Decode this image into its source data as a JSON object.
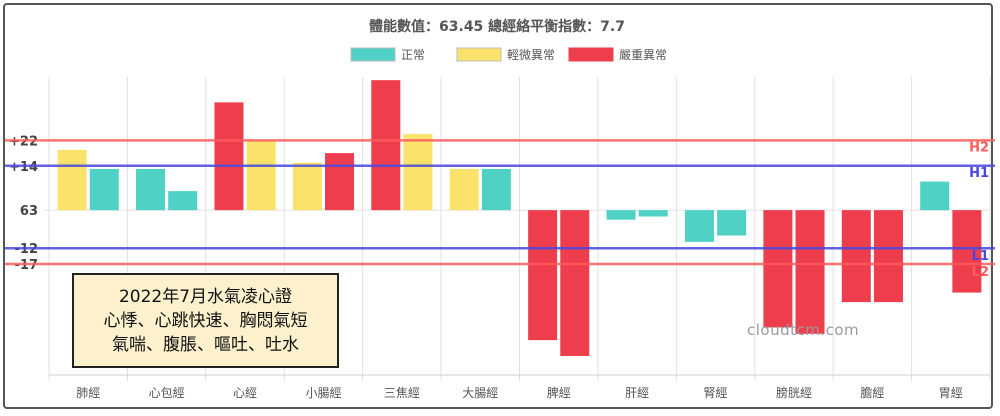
{
  "chart_data": {
    "type": "bar",
    "title": "體能數值：63.45 總經絡平衡指數：7.7",
    "legend": [
      {
        "label": "正常",
        "color": "#4fd1c5"
      },
      {
        "label": "輕微異常",
        "color": "#fbe36b"
      },
      {
        "label": "嚴重異常",
        "color": "#ee3e4e"
      }
    ],
    "legend_position": "top-center",
    "categories": [
      "肺經",
      "心包經",
      "心經",
      "小腸經",
      "三焦經",
      "大腸經",
      "脾經",
      "肝經",
      "腎經",
      "膀胱經",
      "膽經",
      "胃經"
    ],
    "series": [
      {
        "values": [
          19,
          13,
          34,
          15,
          41,
          13,
          -41,
          -3,
          -10,
          -37,
          -29,
          9
        ],
        "levels": [
          "mild",
          "normal",
          "severe",
          "mild",
          "severe",
          "mild",
          "severe",
          "normal",
          "normal",
          "severe",
          "severe",
          "normal"
        ]
      },
      {
        "values": [
          13,
          6,
          22,
          18,
          24,
          13,
          -46,
          -2,
          -8,
          -39,
          -29,
          -26
        ],
        "levels": [
          "normal",
          "normal",
          "mild",
          "severe",
          "mild",
          "normal",
          "severe",
          "normal",
          "normal",
          "severe",
          "severe",
          "severe"
        ]
      }
    ],
    "ylim": [
      -52,
      42
    ],
    "ytick_labels": [
      {
        "value": 22,
        "label": "+22"
      },
      {
        "value": 14,
        "label": "+14"
      },
      {
        "value": 0,
        "label": "63"
      },
      {
        "value": -12,
        "label": "-12"
      },
      {
        "value": -17,
        "label": "-17"
      }
    ],
    "reference_lines": [
      {
        "value": 22,
        "label": "H2",
        "color": "#ff5c5c"
      },
      {
        "value": 14,
        "label": "H1",
        "color": "#4848e0"
      },
      {
        "value": -12,
        "label": "L1",
        "color": "#4848e0"
      },
      {
        "value": -17,
        "label": "L2",
        "color": "#ff5c5c"
      }
    ],
    "grid": true
  },
  "caption": {
    "line1": "2022年7月水氣凌心證",
    "line2": "心悸、心跳快速、胸悶氣短",
    "line3": "氣喘、腹脹、嘔吐、吐水"
  },
  "watermark": "cloudtcm.com"
}
